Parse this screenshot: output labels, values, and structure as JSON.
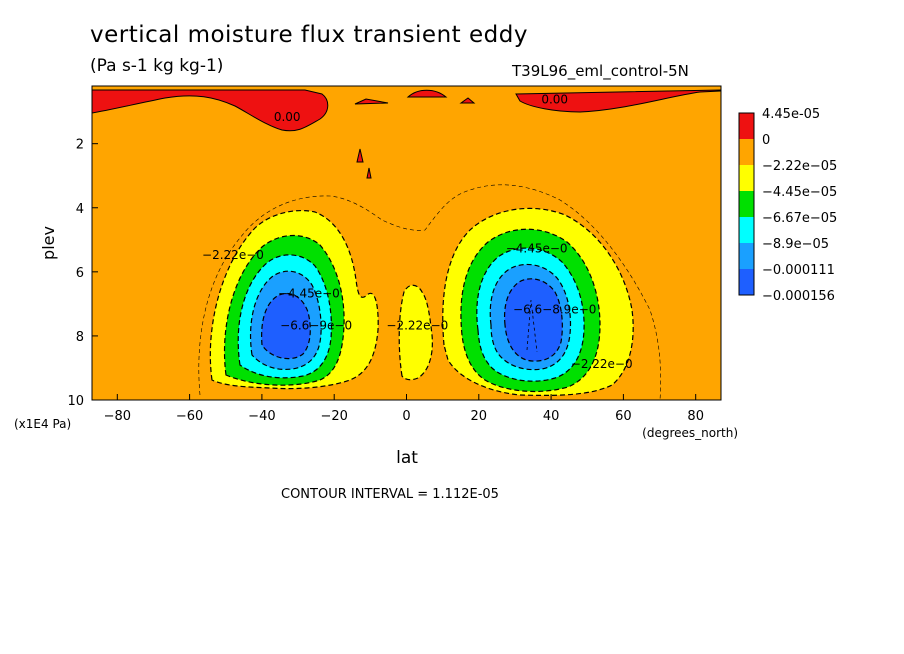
{
  "chart_data": {
    "type": "heatmap",
    "subtype": "filled-contour",
    "title": "vertical moisture flux transient eddy",
    "units": "(Pa s-1 kg kg-1)",
    "dataset": "T39L96_eml_control-5N",
    "xlabel": "lat",
    "xunits": "(degrees_north)",
    "ylabel": "plev",
    "yunits": "(x1E4 Pa)",
    "xlim": [
      -87,
      87
    ],
    "ylim": [
      10,
      0.2
    ],
    "xticks": [
      "-80",
      "-60",
      "-40",
      "-20",
      "0",
      "20",
      "40",
      "60",
      "80"
    ],
    "yticks": [
      "2",
      "4",
      "6",
      "8",
      "10"
    ],
    "contour_interval": "CONTOUR INTERVAL = 1.112E-05",
    "colorbar": [
      {
        "label": "4.45e-05",
        "color": "#ee1111"
      },
      {
        "label": "0",
        "color": "#ffa500"
      },
      {
        "label": "−2.22e−05",
        "color": "#ffff00"
      },
      {
        "label": "−4.45e−05",
        "color": "#00e000"
      },
      {
        "label": "−6.67e−05",
        "color": "#00ffff"
      },
      {
        "label": "−8.9e−05",
        "color": "#1aa0ff"
      },
      {
        "label": "−0.000111",
        "color": "#1e5fff"
      },
      {
        "label": "−0.000156",
        "color": ""
      }
    ],
    "contour_labels": [
      {
        "text": "0.00",
        "lat": -33,
        "plev": 1.3
      },
      {
        "text": "0.00",
        "lat": 41,
        "plev": 0.75
      },
      {
        "text": "−2.22e−0",
        "lat": -48,
        "plev": 5.6
      },
      {
        "text": "−4.45e−0",
        "lat": -27,
        "plev": 6.8
      },
      {
        "text": "−6.6−9e−0",
        "lat": -25,
        "plev": 7.8
      },
      {
        "text": "−2.22e−0",
        "lat": 3,
        "plev": 7.8
      },
      {
        "text": "−4.45e−0",
        "lat": 36,
        "plev": 5.4
      },
      {
        "text": "−6.6−8.9e−0",
        "lat": 41,
        "plev": 7.3
      },
      {
        "text": "−2.22e−0",
        "lat": 54,
        "plev": 9.0
      }
    ],
    "features": [
      {
        "name": "southern-min",
        "lat": -33,
        "plev": 7.7,
        "value_band": "−0.000111 to −0.000156"
      },
      {
        "name": "northern-min",
        "lat": 35,
        "plev": 7.7,
        "value_band": "−0.000111 to −0.000156"
      },
      {
        "name": "southern-upper-positive",
        "lat": -60,
        "plev": 1.0,
        "value_band": "0 to 4.45e-05"
      },
      {
        "name": "northern-upper-positive",
        "lat": 70,
        "plev": 0.8,
        "value_band": "0 to 4.45e-05"
      }
    ],
    "grid": false,
    "legend": "right"
  }
}
